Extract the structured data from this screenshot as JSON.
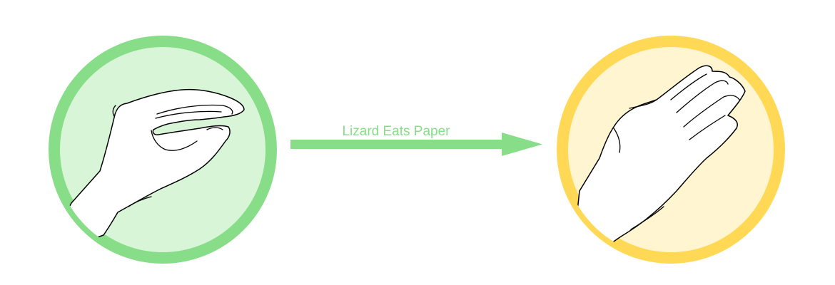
{
  "diagram": {
    "relation_label": "Lizard Eats Paper",
    "source": {
      "gesture_icon": "lizard-hand-icon"
    },
    "target": {
      "gesture_icon": "paper-hand-icon"
    }
  },
  "colors": {
    "source_ring": "#88dd88",
    "source_fill": "#d8f5d8",
    "target_ring": "#ffd955",
    "target_fill": "#fff5d0",
    "arrow": "#88dd88",
    "label": "#88dd88",
    "hand_outline": "#000000",
    "hand_fill": "#ffffff"
  }
}
